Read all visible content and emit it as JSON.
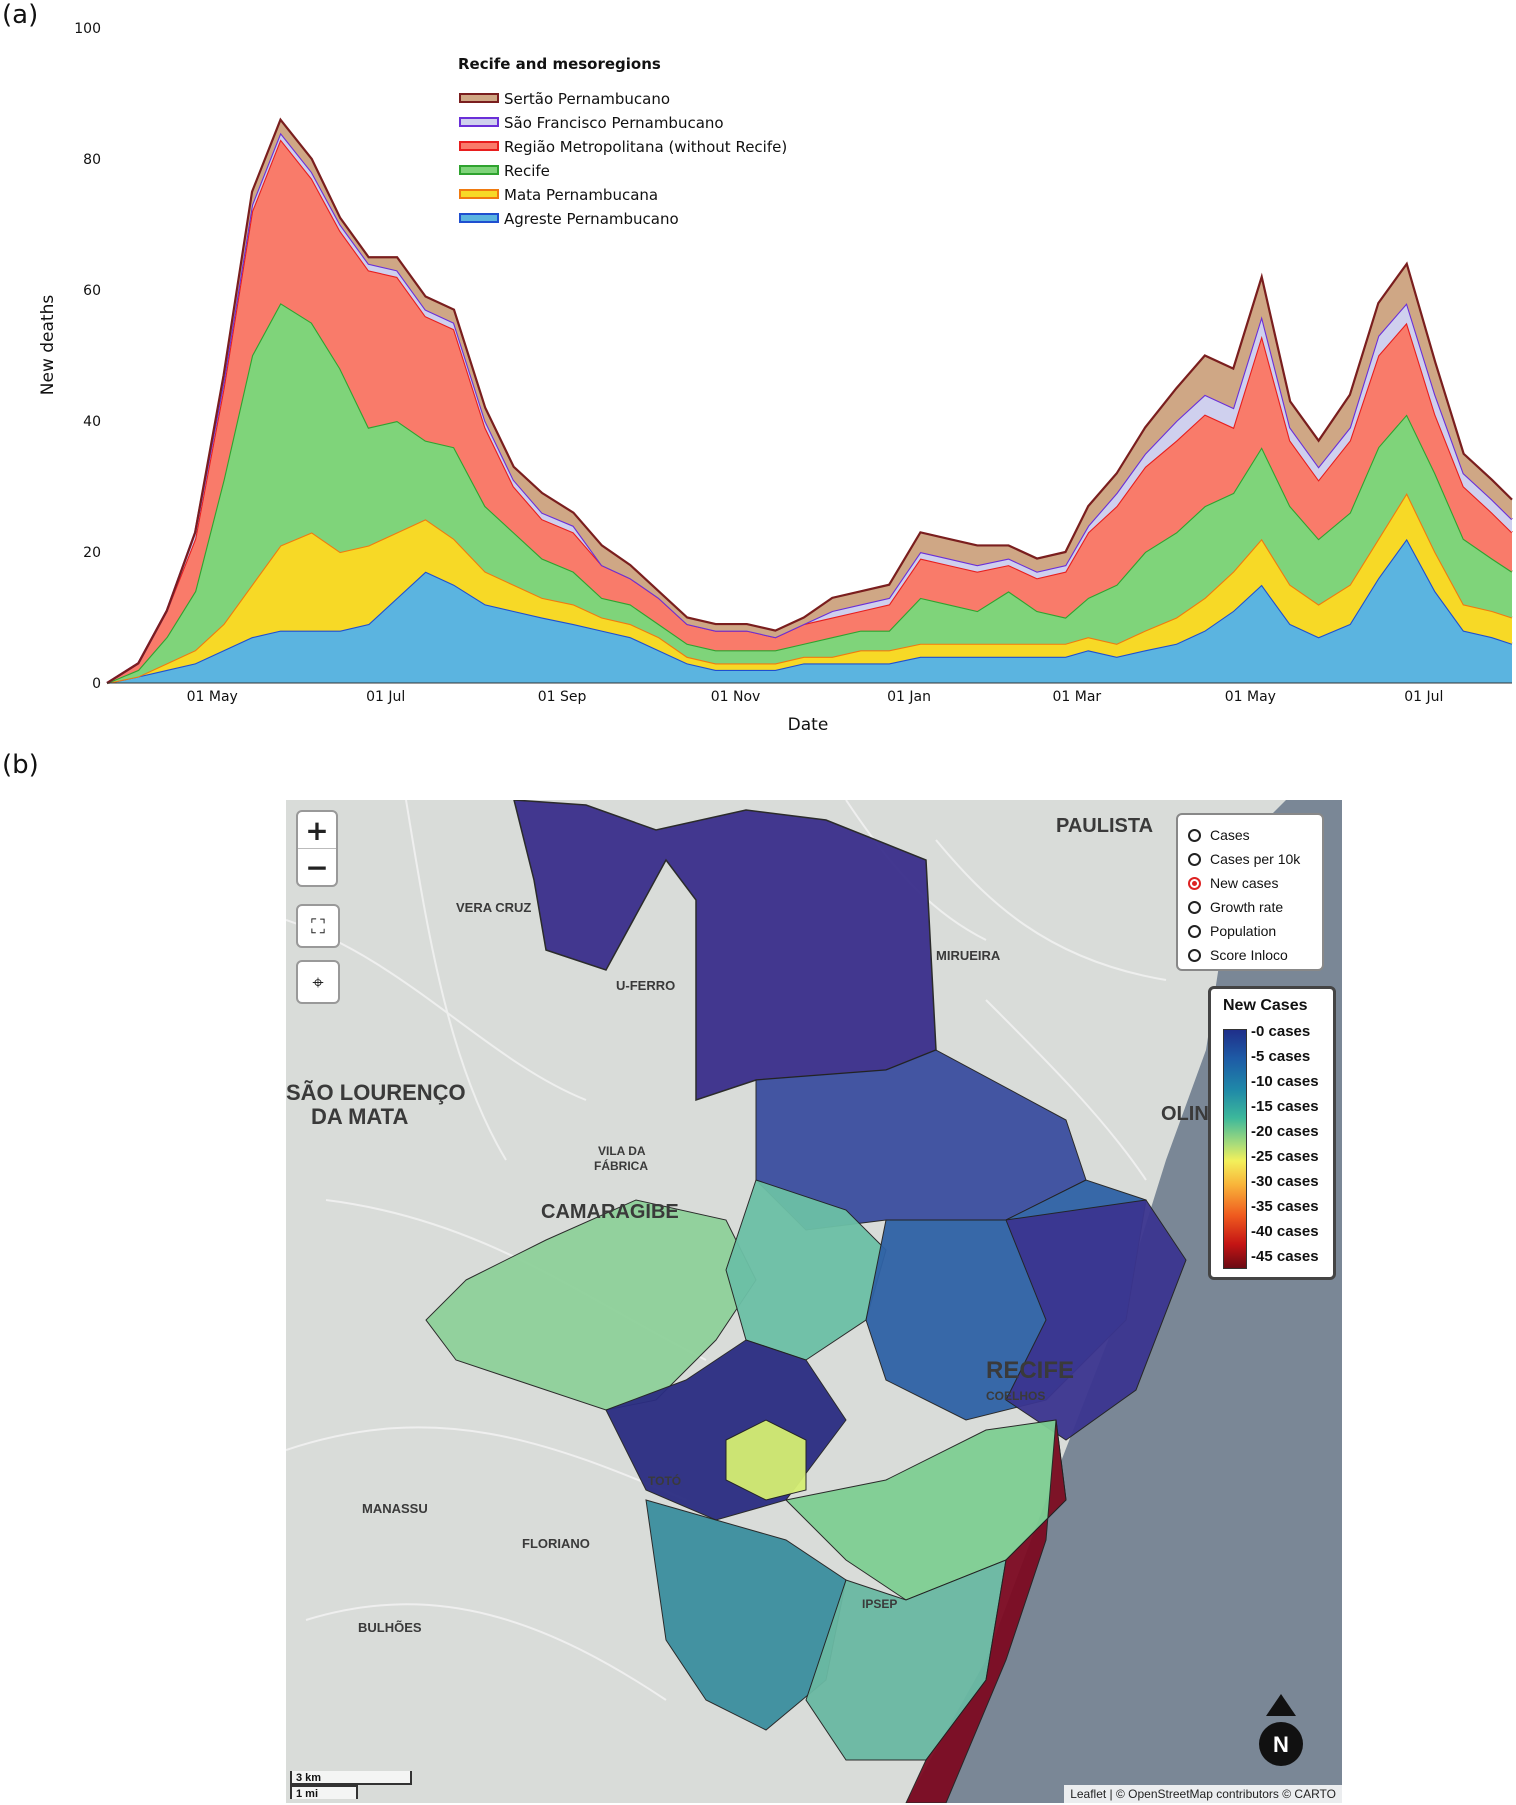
{
  "panel_a_label": "(a)",
  "panel_b_label": "(b)",
  "chart_data": {
    "type": "area",
    "stacked": true,
    "title": "",
    "xlabel": "Date",
    "ylabel": "New deaths",
    "ylim": [
      0,
      100
    ],
    "yticks": [
      0,
      20,
      40,
      60,
      80,
      100
    ],
    "xticks": [
      "01 May",
      "01 Jul",
      "01 Sep",
      "01 Nov",
      "01 Jan",
      "01 Mar",
      "01 May",
      "01 Jul"
    ],
    "xrange": [
      "2020-03-25",
      "2021-08-01"
    ],
    "legend_title": "Recife and mesoregions",
    "legend_position": "top-center",
    "grid": false,
    "x": [
      "2020-03-25",
      "2020-04-05",
      "2020-04-15",
      "2020-04-25",
      "2020-05-05",
      "2020-05-15",
      "2020-05-25",
      "2020-06-05",
      "2020-06-15",
      "2020-06-25",
      "2020-07-05",
      "2020-07-15",
      "2020-07-25",
      "2020-08-05",
      "2020-08-15",
      "2020-08-25",
      "2020-09-05",
      "2020-09-15",
      "2020-09-25",
      "2020-10-05",
      "2020-10-15",
      "2020-10-25",
      "2020-11-05",
      "2020-11-15",
      "2020-11-25",
      "2020-12-05",
      "2020-12-15",
      "2020-12-25",
      "2021-01-05",
      "2021-01-15",
      "2021-01-25",
      "2021-02-05",
      "2021-02-15",
      "2021-02-25",
      "2021-03-05",
      "2021-03-15",
      "2021-03-25",
      "2021-04-05",
      "2021-04-15",
      "2021-04-25",
      "2021-05-05",
      "2021-05-15",
      "2021-05-25",
      "2021-06-05",
      "2021-06-15",
      "2021-06-25",
      "2021-07-05",
      "2021-07-15",
      "2021-07-25",
      "2021-08-01"
    ],
    "series": [
      {
        "name": "Agreste Pernambucano",
        "color": "#5bb4e0",
        "line_color": "#1f4fd0",
        "values": [
          0,
          1,
          2,
          3,
          5,
          7,
          8,
          8,
          8,
          9,
          13,
          17,
          15,
          12,
          11,
          10,
          9,
          8,
          7,
          5,
          3,
          2,
          2,
          2,
          3,
          3,
          3,
          3,
          4,
          4,
          4,
          4,
          4,
          4,
          5,
          4,
          5,
          6,
          8,
          11,
          15,
          9,
          7,
          9,
          16,
          22,
          14,
          8,
          7,
          6
        ]
      },
      {
        "name": "Mata Pernambucana",
        "color": "#f7d926",
        "line_color": "#f07a10",
        "values": [
          0,
          0,
          1,
          2,
          4,
          8,
          13,
          15,
          12,
          12,
          10,
          8,
          7,
          5,
          4,
          3,
          3,
          2,
          2,
          2,
          1,
          1,
          1,
          1,
          1,
          1,
          2,
          2,
          2,
          2,
          2,
          2,
          2,
          2,
          2,
          2,
          3,
          4,
          5,
          6,
          7,
          6,
          5,
          6,
          6,
          7,
          6,
          4,
          4,
          4
        ]
      },
      {
        "name": "Recife",
        "color": "#7fd47a",
        "line_color": "#2fa32f",
        "values": [
          0,
          1,
          4,
          9,
          22,
          35,
          37,
          32,
          28,
          18,
          17,
          12,
          14,
          10,
          8,
          6,
          5,
          3,
          3,
          2,
          2,
          2,
          2,
          2,
          2,
          3,
          3,
          3,
          7,
          6,
          5,
          8,
          5,
          4,
          6,
          9,
          12,
          13,
          14,
          12,
          14,
          12,
          10,
          11,
          14,
          12,
          12,
          10,
          8,
          7
        ]
      },
      {
        "name": "Região Metropolitana (without Recife)",
        "color": "#f97b6a",
        "line_color": "#e81e1e",
        "values": [
          0,
          1,
          4,
          8,
          14,
          22,
          25,
          22,
          21,
          24,
          22,
          19,
          18,
          12,
          7,
          6,
          6,
          5,
          4,
          4,
          3,
          3,
          3,
          2,
          3,
          3,
          3,
          4,
          6,
          6,
          6,
          4,
          5,
          7,
          10,
          12,
          13,
          14,
          14,
          10,
          17,
          10,
          9,
          11,
          14,
          14,
          9,
          8,
          7,
          6
        ]
      },
      {
        "name": "São Francisco Pernambucano",
        "color": "#cfd0ee",
        "line_color": "#6a2fd8",
        "values": [
          0,
          0,
          0,
          1,
          1,
          1,
          1,
          1,
          1,
          1,
          1,
          1,
          1,
          1,
          1,
          1,
          1,
          0,
          0,
          0,
          0,
          0,
          0,
          0,
          0,
          1,
          1,
          1,
          1,
          1,
          1,
          1,
          1,
          1,
          1,
          2,
          2,
          3,
          3,
          3,
          3,
          2,
          2,
          2,
          3,
          3,
          3,
          2,
          2,
          2
        ]
      },
      {
        "name": "Sertão Pernambucano",
        "color": "#cfa785",
        "line_color": "#7a1e1e",
        "values": [
          0,
          0,
          0,
          0,
          1,
          2,
          2,
          2,
          1,
          1,
          2,
          2,
          2,
          2,
          2,
          3,
          2,
          3,
          2,
          1,
          1,
          1,
          1,
          1,
          1,
          2,
          2,
          2,
          3,
          3,
          3,
          2,
          2,
          2,
          3,
          3,
          4,
          5,
          6,
          6,
          6,
          4,
          4,
          5,
          5,
          6,
          5,
          3,
          3,
          3
        ]
      }
    ]
  },
  "map": {
    "place_labels": [
      "PAULISTA",
      "VERA CRUZ",
      "MIRUEIRA",
      "U-FERRO",
      "SÃO LOURENÇO",
      "DA MATA",
      "VILA DA",
      "FÁBRICA",
      "CAMARAGIBE",
      "OLINDA",
      "RECIFE",
      "COELHOS",
      "TOTÓ",
      "MANASSU",
      "FLORIANO",
      "IPSEP",
      "BULHÕES"
    ],
    "zoom_in": "+",
    "zoom_out": "−",
    "fullscreen_icon": "⛶",
    "locate_icon": "⌖",
    "layers": [
      {
        "label": "Cases",
        "selected": false
      },
      {
        "label": "Cases per 10k",
        "selected": false
      },
      {
        "label": "New cases",
        "selected": true
      },
      {
        "label": "Growth rate",
        "selected": false
      },
      {
        "label": "Population",
        "selected": false
      },
      {
        "label": "Score Inloco",
        "selected": false
      }
    ],
    "colorbar_title": "New Cases",
    "colorbar_labels": [
      "0 cases",
      "5 cases",
      "10 cases",
      "15 cases",
      "20 cases",
      "25 cases",
      "30 cases",
      "35 cases",
      "40 cases",
      "45 cases"
    ],
    "scale_km": "3 km",
    "scale_mi": "1 mi",
    "north_label": "N",
    "attribution": "Leaflet | © OpenStreetMap contributors © CARTO"
  }
}
